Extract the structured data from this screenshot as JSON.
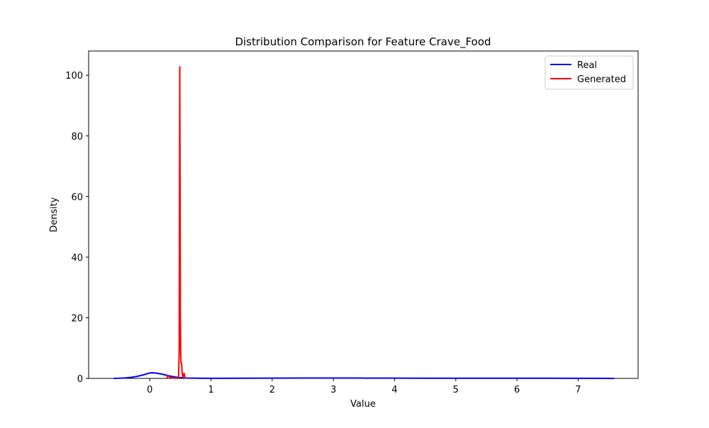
{
  "chart_data": {
    "type": "line",
    "title": "Distribution Comparison for Feature Crave_Food",
    "xlabel": "Value",
    "ylabel": "Density",
    "xlim": [
      -1.0,
      7.98
    ],
    "ylim": [
      0,
      108
    ],
    "xticks": [
      0,
      1,
      2,
      3,
      4,
      5,
      6,
      7
    ],
    "yticks": [
      0,
      20,
      40,
      60,
      80,
      100
    ],
    "grid": false,
    "legend_position": "top-right",
    "series": [
      {
        "name": "Real",
        "color": "#0000ff",
        "points": [
          [
            -0.59,
            0.0
          ],
          [
            -0.5,
            0.05
          ],
          [
            -0.4,
            0.15
          ],
          [
            -0.3,
            0.35
          ],
          [
            -0.2,
            0.7
          ],
          [
            -0.1,
            1.2
          ],
          [
            0.0,
            1.8
          ],
          [
            0.05,
            1.85
          ],
          [
            0.1,
            1.75
          ],
          [
            0.2,
            1.4
          ],
          [
            0.3,
            0.9
          ],
          [
            0.4,
            0.5
          ],
          [
            0.5,
            0.25
          ],
          [
            0.6,
            0.12
          ],
          [
            0.8,
            0.05
          ],
          [
            1.0,
            0.03
          ],
          [
            1.5,
            0.05
          ],
          [
            2.0,
            0.1
          ],
          [
            2.5,
            0.12
          ],
          [
            3.0,
            0.12
          ],
          [
            3.5,
            0.1
          ],
          [
            4.0,
            0.08
          ],
          [
            4.5,
            0.07
          ],
          [
            5.0,
            0.07
          ],
          [
            5.5,
            0.06
          ],
          [
            6.0,
            0.05
          ],
          [
            6.5,
            0.05
          ],
          [
            7.0,
            0.04
          ],
          [
            7.3,
            0.03
          ],
          [
            7.59,
            0.0
          ]
        ]
      },
      {
        "name": "Generated",
        "color": "#ff0000",
        "points": [
          [
            0.28,
            0.0
          ],
          [
            0.29,
            0.8
          ],
          [
            0.3,
            0.9
          ],
          [
            0.32,
            0.4
          ],
          [
            0.35,
            0.2
          ],
          [
            0.4,
            0.1
          ],
          [
            0.45,
            0.05
          ],
          [
            0.47,
            0.3
          ],
          [
            0.48,
            10
          ],
          [
            0.485,
            60
          ],
          [
            0.49,
            102.8
          ],
          [
            0.495,
            60
          ],
          [
            0.5,
            20
          ],
          [
            0.505,
            8
          ],
          [
            0.51,
            5
          ],
          [
            0.515,
            4.8
          ],
          [
            0.52,
            5
          ],
          [
            0.525,
            3
          ],
          [
            0.53,
            1.5
          ],
          [
            0.54,
            0.5
          ],
          [
            0.55,
            1.2
          ],
          [
            0.56,
            1.7
          ],
          [
            0.57,
            0.8
          ],
          [
            0.58,
            0.2
          ],
          [
            0.6,
            0.0
          ]
        ]
      }
    ]
  }
}
